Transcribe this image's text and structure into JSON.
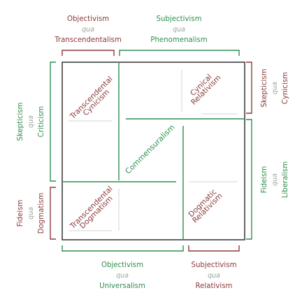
{
  "colors": {
    "red": "#8b3a3a",
    "green": "#2f8f4e",
    "qua": "#9aa59a",
    "frame": "#333333",
    "faint": "#d4d4d4"
  },
  "top": {
    "left": {
      "line1": "Objectivism",
      "qua": "qua",
      "line3": "Transcendentalism"
    },
    "right": {
      "line1": "Subjectivism",
      "qua": "qua",
      "line3": "Phenomenalism"
    }
  },
  "bottom": {
    "left": {
      "line1": "Objectivism",
      "qua": "qua",
      "line3": "Universalism"
    },
    "right": {
      "line1": "Subjectivism",
      "qua": "qua",
      "line3": "Relativism"
    }
  },
  "left": {
    "upper": {
      "line1": "Skepticism",
      "qua": "qua",
      "line3": "Criticism"
    },
    "lower": {
      "line1": "Fideism",
      "qua": "qua",
      "line3": "Dogmatism"
    }
  },
  "right": {
    "upper": {
      "line1": "Skepticism",
      "qua": "qua",
      "line3": "Cynicism"
    },
    "lower": {
      "line1": "Fideism",
      "qua": "qua",
      "line3": "Liberalism"
    }
  },
  "cells": {
    "top_left": {
      "line1": "Transcendental",
      "line2": "Cynicism"
    },
    "top_right": {
      "line1": "Cynical",
      "line2": "Relativism"
    },
    "bottom_left": {
      "line1": "Transcendental",
      "line2": "Dogmatism"
    },
    "bottom_right": {
      "line1": "Dogmatic",
      "line2": "Relativism"
    }
  },
  "center": {
    "label": "Commensuralism"
  }
}
